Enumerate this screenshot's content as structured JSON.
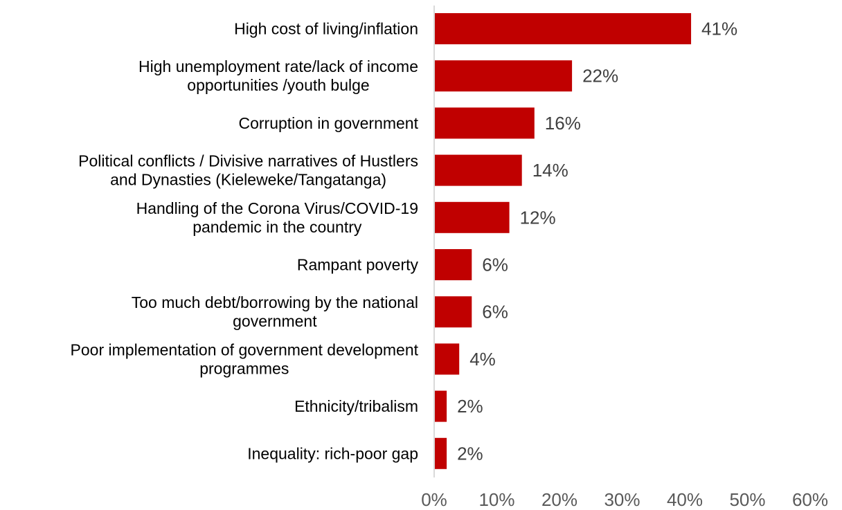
{
  "chart_data": {
    "type": "bar",
    "orientation": "horizontal",
    "categories": [
      [
        "High cost of living/inflation"
      ],
      [
        "High unemployment rate/lack of income",
        "opportunities /youth bulge"
      ],
      [
        "Corruption in government"
      ],
      [
        "Political conflicts / Divisive narratives of Hustlers",
        "and Dynasties (Kieleweke/Tangatanga)"
      ],
      [
        "Handling of the Corona Virus/COVID-19",
        "pandemic in the country"
      ],
      [
        "Rampant poverty"
      ],
      [
        "Too much debt/borrowing by the national",
        "government"
      ],
      [
        "Poor implementation of government development",
        "programmes"
      ],
      [
        "Ethnicity/tribalism"
      ],
      [
        "Inequality: rich-poor gap"
      ]
    ],
    "values": [
      41,
      22,
      16,
      14,
      12,
      6,
      6,
      4,
      2,
      2
    ],
    "data_labels": [
      "41%",
      "22%",
      "16%",
      "14%",
      "12%",
      "6%",
      "6%",
      "4%",
      "2%",
      "2%"
    ],
    "xlim": [
      0,
      60
    ],
    "x_ticks": [
      0,
      10,
      20,
      30,
      40,
      50,
      60
    ],
    "x_tick_labels": [
      "0%",
      "10%",
      "20%",
      "30%",
      "40%",
      "50%",
      "60%"
    ],
    "bar_color": "#C00000",
    "axis_color": "#D9D9D9",
    "grid": false,
    "legend": "none"
  }
}
